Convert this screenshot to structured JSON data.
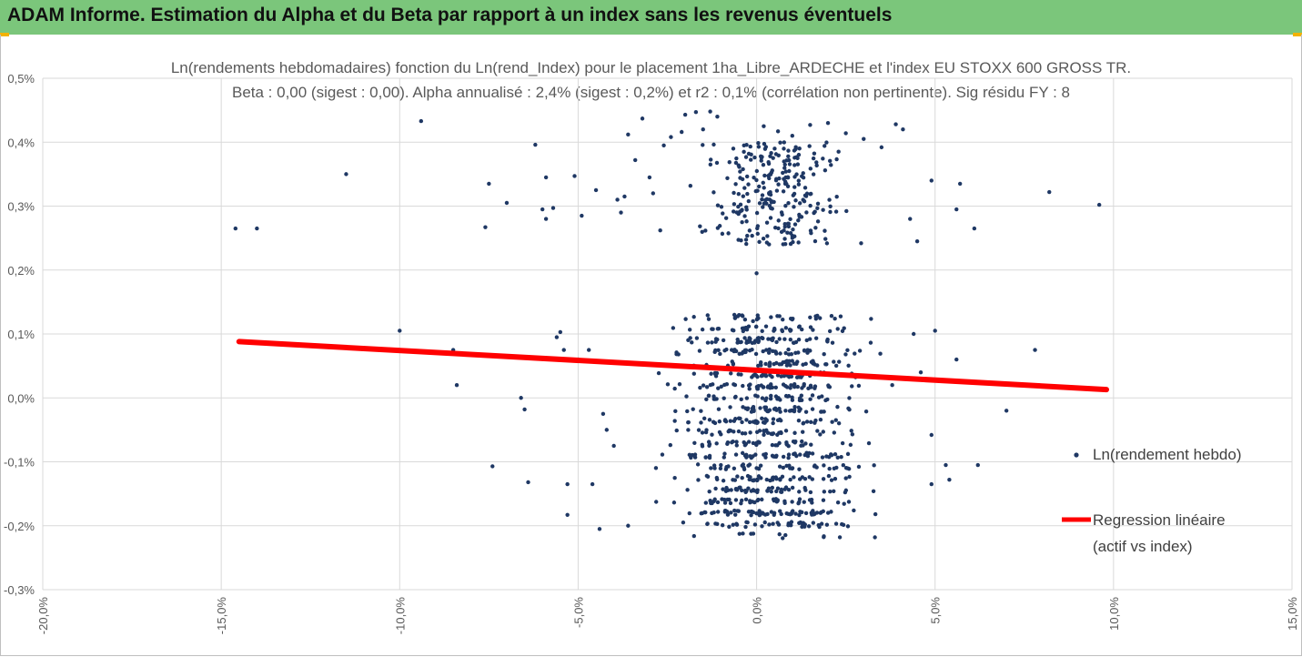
{
  "header": {
    "title": "ADAM Informe. Estimation du Alpha et du Beta par rapport à un index sans les revenus éventuels"
  },
  "colors": {
    "banner": "#7bc67b",
    "points": "#1f3864",
    "regression": "#ff0000",
    "grid": "#d9d9d9"
  },
  "chart_data": {
    "type": "scatter",
    "title": "Ln(rendements hebdomadaires) fonction du Ln(rend_Index) pour le placement 1ha_Libre_ARDECHE et l'index EU STOXX 600 GROSS TR.",
    "subtitle": "Beta : 0,00 (sigest : 0,00). Alpha annualisé : 2,4% (sigest : 0,2%) et r2 : 0,1% (corrélation non pertinente). Sig résidu FY : 8",
    "xlim": [
      -20,
      15
    ],
    "ylim": [
      -0.3,
      0.5
    ],
    "x_ticks": [
      "-20,0%",
      "-15,0%",
      "-10,0%",
      "-5,0%",
      "0,0%",
      "5,0%",
      "10,0%",
      "15,0%"
    ],
    "y_ticks": [
      "0,5%",
      "0,4%",
      "0,3%",
      "0,2%",
      "0,1%",
      "0,0%",
      "-0,1%",
      "-0,2%",
      "-0,3%"
    ],
    "grid": true,
    "legend_position": "right",
    "series": [
      {
        "name": "Ln(rendement hebdo)",
        "kind": "points",
        "points": [
          [
            -14.6,
            0.265
          ],
          [
            -14.0,
            0.265
          ],
          [
            -11.5,
            0.35
          ],
          [
            -9.4,
            0.433
          ],
          [
            -10.0,
            0.105
          ],
          [
            -8.5,
            0.075
          ],
          [
            -8.4,
            0.02
          ],
          [
            -7.5,
            0.335
          ],
          [
            -7.6,
            0.267
          ],
          [
            -7.4,
            -0.107
          ],
          [
            -7.0,
            0.305
          ],
          [
            -6.6,
            0.0
          ],
          [
            -6.5,
            -0.018
          ],
          [
            -6.4,
            -0.132
          ],
          [
            -6.2,
            0.396
          ],
          [
            -6.0,
            0.295
          ],
          [
            -5.9,
            0.345
          ],
          [
            -5.9,
            0.28
          ],
          [
            -5.7,
            0.297
          ],
          [
            -5.6,
            0.095
          ],
          [
            -5.5,
            0.103
          ],
          [
            -5.4,
            0.075
          ],
          [
            -5.3,
            -0.135
          ],
          [
            -5.3,
            -0.183
          ],
          [
            -5.1,
            0.347
          ],
          [
            -5.0,
            0.06
          ],
          [
            -4.9,
            0.285
          ],
          [
            -4.7,
            0.075
          ],
          [
            -4.6,
            -0.135
          ],
          [
            -4.5,
            0.325
          ],
          [
            -4.4,
            -0.205
          ],
          [
            -4.3,
            -0.025
          ],
          [
            -4.2,
            -0.05
          ],
          [
            -4.0,
            -0.075
          ],
          [
            -3.9,
            0.31
          ],
          [
            -3.8,
            0.29
          ],
          [
            -3.7,
            0.315
          ],
          [
            -3.6,
            0.412
          ],
          [
            -3.6,
            -0.2
          ],
          [
            -3.4,
            0.372
          ],
          [
            -3.2,
            0.437
          ],
          [
            -3.0,
            0.345
          ],
          [
            -2.9,
            0.32
          ],
          [
            -2.7,
            0.262
          ],
          [
            -2.6,
            0.395
          ],
          [
            -2.4,
            0.408
          ],
          [
            -2.1,
            0.416
          ],
          [
            -2.0,
            0.443
          ],
          [
            -1.7,
            0.447
          ],
          [
            -1.5,
            0.42
          ],
          [
            -1.3,
            0.448
          ],
          [
            -1.1,
            0.44
          ],
          [
            0.0,
            0.195
          ],
          [
            -0.1,
            0.12
          ],
          [
            0.2,
            0.425
          ],
          [
            0.6,
            0.417
          ],
          [
            1.0,
            0.41
          ],
          [
            1.5,
            0.427
          ],
          [
            2.0,
            0.43
          ],
          [
            2.5,
            0.414
          ],
          [
            3.0,
            0.405
          ],
          [
            3.5,
            0.392
          ],
          [
            3.9,
            0.428
          ],
          [
            4.1,
            0.42
          ],
          [
            4.3,
            0.28
          ],
          [
            4.5,
            0.245
          ],
          [
            4.9,
            0.34
          ],
          [
            5.0,
            0.105
          ],
          [
            5.3,
            -0.105
          ],
          [
            5.4,
            -0.128
          ],
          [
            5.6,
            0.06
          ],
          [
            6.1,
            0.265
          ],
          [
            6.2,
            -0.105
          ],
          [
            5.7,
            0.335
          ],
          [
            5.6,
            0.295
          ],
          [
            7.0,
            -0.02
          ],
          [
            7.8,
            0.075
          ],
          [
            8.2,
            0.322
          ],
          [
            9.6,
            0.302
          ],
          [
            4.9,
            -0.135
          ],
          [
            4.9,
            -0.058
          ],
          [
            4.4,
            0.1
          ],
          [
            4.6,
            0.04
          ],
          [
            3.8,
            0.02
          ]
        ],
        "clusters": [
          {
            "x_center": 0.5,
            "x_spread": 2.2,
            "y_min": 0.24,
            "y_max": 0.4,
            "count": 260
          },
          {
            "x_center": 0.3,
            "x_spread": 3.0,
            "y_min": -0.21,
            "y_max": 0.13,
            "count": 900
          }
        ]
      },
      {
        "name": "Regression linéaire (actif vs index)",
        "kind": "line",
        "x": [
          -14.5,
          9.8
        ],
        "y": [
          0.088,
          0.013
        ]
      }
    ]
  },
  "legend": {
    "points_label": "Ln(rendement hebdo)",
    "regression_label_1": "Regression linéaire",
    "regression_label_2": "(actif vs index)"
  }
}
